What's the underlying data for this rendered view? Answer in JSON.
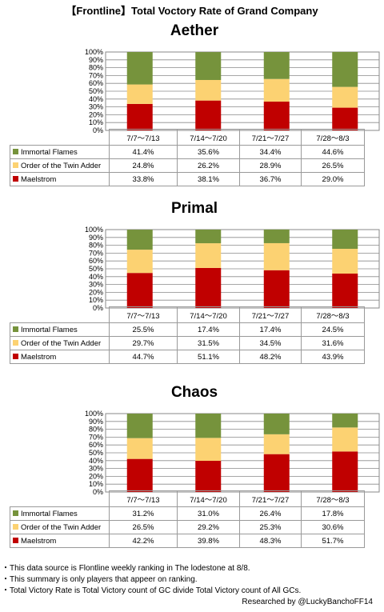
{
  "title": "【Frontline】Total Voctory Rate of Grand Company",
  "colors": {
    "immortal_flames": "#76933c",
    "twin_adder": "#fcd272",
    "maelstrom": "#c00000"
  },
  "legend_labels": [
    "Immortal Flames",
    "Order of the Twin Adder",
    "Maelstrom"
  ],
  "y_ticks": [
    "100%",
    "90%",
    "80%",
    "70%",
    "60%",
    "50%",
    "40%",
    "30%",
    "20%",
    "10%",
    "0%"
  ],
  "chart_data": [
    {
      "type": "bar",
      "stacked": true,
      "title": "Aether",
      "categories": [
        "7/7～7/13",
        "7/14～7/20",
        "7/21～7/27",
        "7/28～8/3"
      ],
      "ylim": [
        0,
        100
      ],
      "series": [
        {
          "name": "Maelstrom",
          "values": [
            33.8,
            38.1,
            36.7,
            29.0
          ],
          "labels": [
            "33.8%",
            "38.1%",
            "36.7%",
            "29.0%"
          ]
        },
        {
          "name": "Order of the Twin Adder",
          "values": [
            24.8,
            26.2,
            28.9,
            26.5
          ],
          "labels": [
            "24.8%",
            "26.2%",
            "28.9%",
            "26.5%"
          ]
        },
        {
          "name": "Immortal Flames",
          "values": [
            41.4,
            35.6,
            34.4,
            44.6
          ],
          "labels": [
            "41.4%",
            "35.6%",
            "34.4%",
            "44.6%"
          ]
        }
      ]
    },
    {
      "type": "bar",
      "stacked": true,
      "title": "Primal",
      "categories": [
        "7/7～7/13",
        "7/14～7/20",
        "7/21～7/27",
        "7/28～8/3"
      ],
      "ylim": [
        0,
        100
      ],
      "series": [
        {
          "name": "Maelstrom",
          "values": [
            44.7,
            51.1,
            48.2,
            43.9
          ],
          "labels": [
            "44.7%",
            "51.1%",
            "48.2%",
            "43.9%"
          ]
        },
        {
          "name": "Order of the Twin Adder",
          "values": [
            29.7,
            31.5,
            34.5,
            31.6
          ],
          "labels": [
            "29.7%",
            "31.5%",
            "34.5%",
            "31.6%"
          ]
        },
        {
          "name": "Immortal Flames",
          "values": [
            25.5,
            17.4,
            17.4,
            24.5
          ],
          "labels": [
            "25.5%",
            "17.4%",
            "17.4%",
            "24.5%"
          ]
        }
      ]
    },
    {
      "type": "bar",
      "stacked": true,
      "title": "Chaos",
      "categories": [
        "7/7～7/13",
        "7/14～7/20",
        "7/21～7/27",
        "7/28～8/3"
      ],
      "ylim": [
        0,
        100
      ],
      "series": [
        {
          "name": "Maelstrom",
          "values": [
            42.2,
            39.8,
            48.3,
            51.7
          ],
          "labels": [
            "42.2%",
            "39.8%",
            "48.3%",
            "51.7%"
          ]
        },
        {
          "name": "Order of the Twin Adder",
          "values": [
            26.5,
            29.2,
            25.3,
            30.6
          ],
          "labels": [
            "26.5%",
            "29.2%",
            "25.3%",
            "30.6%"
          ]
        },
        {
          "name": "Immortal Flames",
          "values": [
            31.2,
            31.0,
            26.4,
            17.8
          ],
          "labels": [
            "31.2%",
            "31.0%",
            "26.4%",
            "17.8%"
          ]
        }
      ]
    }
  ],
  "notes": [
    "・This data source is Flontline weekly ranking in The lodestone at 8/8.",
    "・This summary is only players that appeer on ranking.",
    "・Total Victory Rate is Total Victory count of GC divide Total Victory count of All GCs."
  ],
  "credit": "Researched by @LuckyBanchoFF14"
}
